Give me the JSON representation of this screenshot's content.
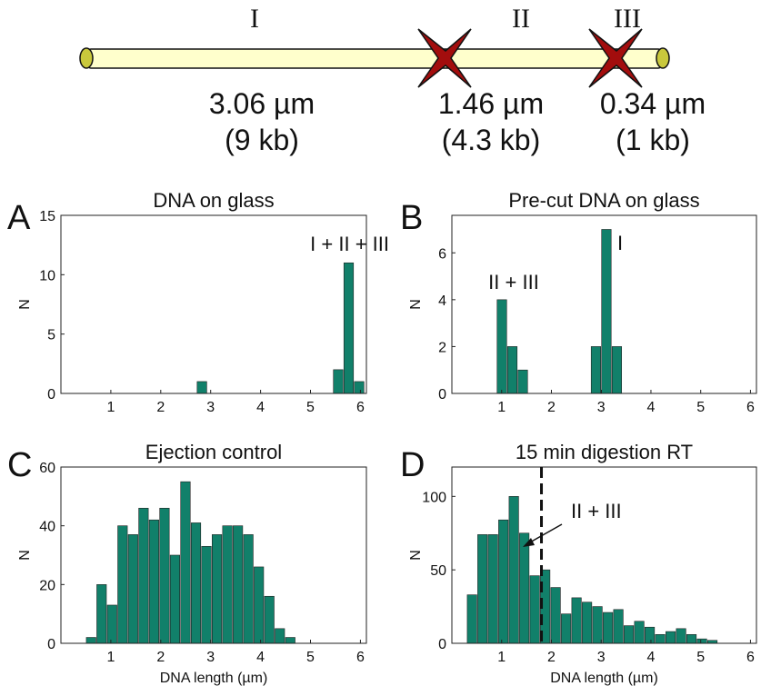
{
  "diagram": {
    "segments": [
      {
        "name": "I",
        "length": "3.06 µm",
        "size": "(9 kb)"
      },
      {
        "name": "II",
        "length": "1.46 µm",
        "size": "(4.3 kb)"
      },
      {
        "name": "III",
        "length": "0.34 µm",
        "size": "(1 kb)"
      }
    ]
  },
  "chart_data": [
    {
      "type": "histogram",
      "panel_label": "A",
      "title": "DNA on glass",
      "ylabel": "N",
      "annotations": [
        "I + II + III"
      ],
      "color": "#11806a",
      "bins": [
        2.72,
        2.93,
        3.14,
        3.35,
        3.56,
        3.77,
        3.98,
        4.19,
        4.4,
        4.61,
        4.82,
        5.03,
        5.24,
        5.45,
        5.66,
        5.87,
        6.08
      ],
      "values": [
        1,
        0,
        0,
        0,
        0,
        0,
        0,
        0,
        0,
        0,
        0,
        0,
        0,
        2,
        11,
        1
      ],
      "xlim": [
        0,
        6.12
      ],
      "xticks": [
        1,
        2,
        3,
        4,
        5,
        6
      ],
      "ylim": [
        0,
        15
      ],
      "yticks": [
        0,
        5,
        10,
        15
      ]
    },
    {
      "type": "histogram",
      "panel_label": "B",
      "title": "Pre-cut DNA on glass",
      "ylabel": "N",
      "annotations": [
        "II + III",
        "I"
      ],
      "color": "#11806a",
      "bins": [
        0.9,
        1.11,
        1.32,
        1.53,
        1.74,
        1.95,
        2.16,
        2.37,
        2.58,
        2.79,
        3.0,
        3.21,
        3.42
      ],
      "values": [
        4,
        2,
        1,
        0,
        0,
        0,
        0,
        0,
        0,
        2,
        7,
        2
      ],
      "xlim": [
        0,
        6.12
      ],
      "xticks": [
        1,
        2,
        3,
        4,
        5,
        6
      ],
      "ylim": [
        0,
        7.6
      ],
      "yticks": [
        0,
        2,
        4,
        6
      ]
    },
    {
      "type": "histogram",
      "panel_label": "C",
      "title": "Ejection control",
      "ylabel": "N",
      "xlabel": "DNA length (µm)",
      "color": "#11806a",
      "bins": [
        0.5,
        0.71,
        0.92,
        1.13,
        1.34,
        1.55,
        1.76,
        1.97,
        2.18,
        2.39,
        2.6,
        2.81,
        3.02,
        3.23,
        3.44,
        3.65,
        3.86,
        4.07,
        4.28,
        4.49,
        4.7
      ],
      "values": [
        2,
        20,
        13,
        40,
        37,
        46,
        42,
        46,
        30,
        55,
        41,
        33,
        37,
        40,
        40,
        37,
        26,
        16,
        5,
        2
      ],
      "xlim": [
        0,
        6.12
      ],
      "xticks": [
        1,
        2,
        3,
        4,
        5,
        6
      ],
      "ylim": [
        0,
        60
      ],
      "yticks": [
        0,
        20,
        40,
        60
      ]
    },
    {
      "type": "histogram",
      "panel_label": "D",
      "title": "15 min digestion RT",
      "ylabel": "N",
      "xlabel": "DNA length (µm)",
      "annotations": [
        "II + III"
      ],
      "color": "#11806a",
      "vline": 1.8,
      "bins": [
        0.3,
        0.51,
        0.72,
        0.93,
        1.14,
        1.35,
        1.56,
        1.77,
        1.98,
        2.19,
        2.4,
        2.61,
        2.82,
        3.03,
        3.24,
        3.45,
        3.66,
        3.87,
        4.08,
        4.29,
        4.5,
        4.71,
        4.92,
        5.13,
        5.34
      ],
      "values": [
        33,
        74,
        74,
        84,
        100,
        75,
        46,
        50,
        38,
        20,
        31,
        28,
        25,
        21,
        23,
        12,
        15,
        11,
        6,
        8,
        10,
        6,
        3,
        2
      ],
      "xlim": [
        0,
        6.12
      ],
      "xticks": [
        1,
        2,
        3,
        4,
        5,
        6
      ],
      "ylim": [
        0,
        120
      ],
      "yticks": [
        0,
        50,
        100
      ]
    }
  ]
}
